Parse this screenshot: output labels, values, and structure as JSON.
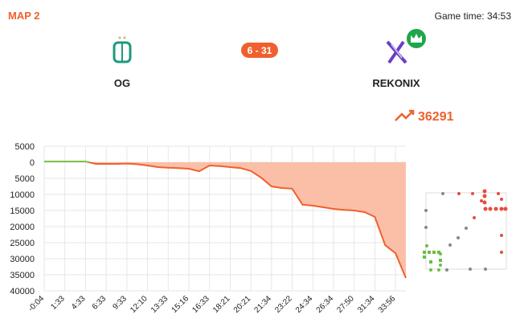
{
  "match": {
    "map": "MAP 2",
    "game_time": "Game time: 34:53",
    "score": "6 - 31",
    "team_left": "OG",
    "team_right": "REKONIX",
    "gold_lead": "36291"
  },
  "chart_data": {
    "type": "area-line",
    "categories": [
      "-0:04",
      null,
      "1:33",
      null,
      "4:33",
      null,
      "6:33",
      null,
      "9:33",
      null,
      "12:10",
      null,
      "13:33",
      null,
      "15:16",
      null,
      "16:33",
      null,
      "18:21",
      null,
      "20:21",
      null,
      "21:34",
      null,
      "23:22",
      null,
      "24:34",
      null,
      "26:34",
      null,
      "27:50",
      null,
      "31:34",
      null,
      "33:56",
      null
    ],
    "values": [
      250,
      250,
      250,
      250,
      250,
      -500,
      -500,
      -500,
      -400,
      -600,
      -1000,
      -1500,
      -1700,
      -1800,
      -2000,
      -2800,
      -1000,
      -1200,
      -1500,
      -1800,
      -2700,
      -4800,
      -7500,
      -8000,
      -8200,
      -13200,
      -13500,
      -14000,
      -14500,
      -14800,
      -15000,
      -15500,
      -17000,
      -25800,
      -28300,
      -36000
    ],
    "ylim": [
      -40000,
      5000
    ],
    "yticks": [
      {
        "value": 5000,
        "label": "5000"
      },
      0,
      {
        "value": -5000,
        "label": "5000"
      },
      {
        "value": -10000,
        "label": "10000"
      },
      {
        "value": -15000,
        "label": "15000"
      },
      {
        "value": -20000,
        "label": "20000"
      },
      {
        "value": -25000,
        "label": "25000"
      },
      {
        "value": -30000,
        "label": "30000"
      },
      {
        "value": -35000,
        "label": "35000"
      },
      {
        "value": -40000,
        "label": "40000"
      }
    ],
    "positive_color": "#7cc24a",
    "negative_color": "#f0602e",
    "area_color": "#fbbfa8",
    "grid": true
  }
}
